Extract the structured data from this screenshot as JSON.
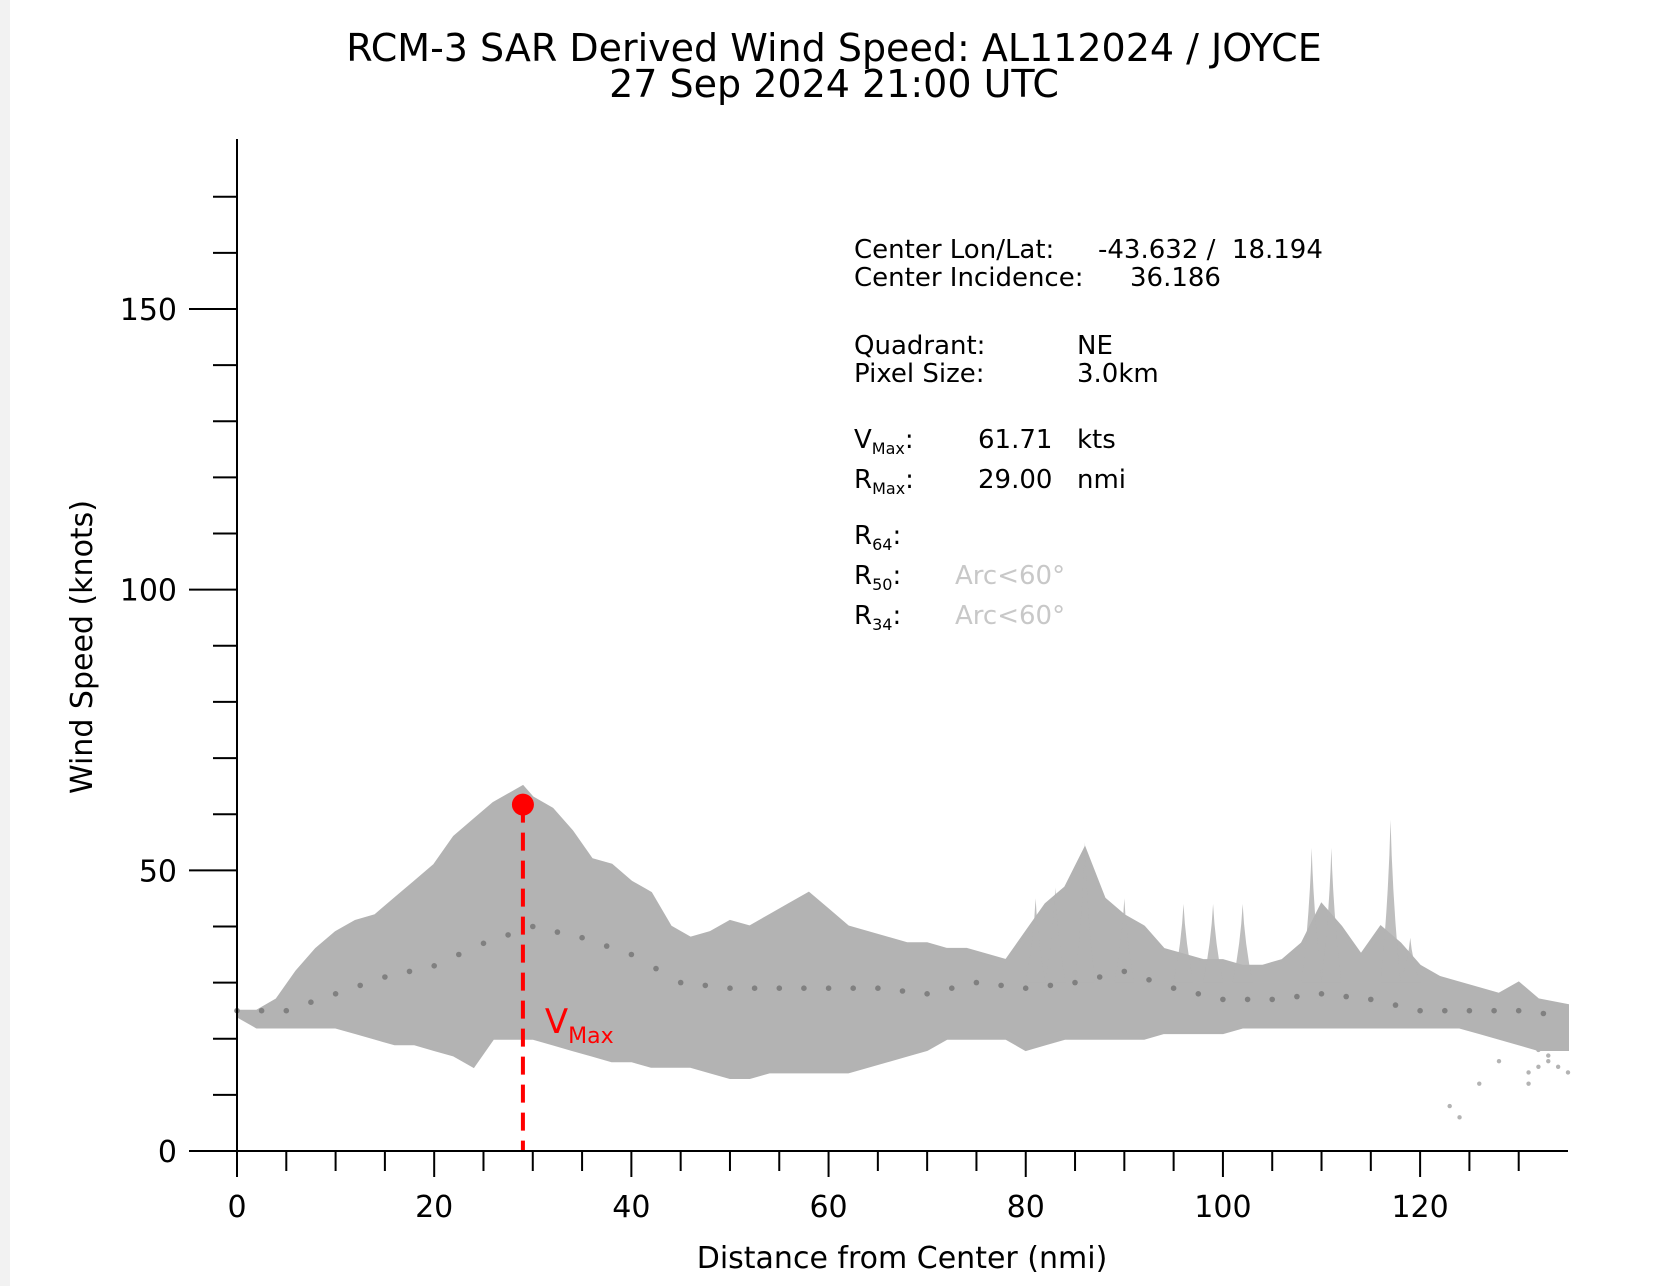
{
  "chart_data": {
    "type": "scatter",
    "title": "RCM-3 SAR Derived Wind Speed: AL112024 / JOYCE",
    "subtitle": "27 Sep 2024 21:00 UTC",
    "xlabel": "Distance from Center (nmi)",
    "ylabel": "Wind Speed (knots)",
    "xlim": [
      0,
      135
    ],
    "ylim": [
      0,
      180
    ],
    "x_ticks": [
      0,
      20,
      40,
      60,
      80,
      100,
      120
    ],
    "y_ticks": [
      0,
      50,
      100,
      150
    ],
    "grid": false,
    "colors": {
      "points": "#b3b3b3",
      "median": "#808080",
      "vmax": "#ff0000",
      "na_text": "#c8c8c8"
    },
    "envelope": {
      "x": [
        0,
        2,
        4,
        6,
        8,
        10,
        12,
        14,
        16,
        18,
        20,
        22,
        24,
        26,
        28,
        29,
        30,
        32,
        34,
        36,
        38,
        40,
        42,
        44,
        46,
        48,
        50,
        52,
        54,
        56,
        58,
        60,
        62,
        64,
        66,
        68,
        70,
        72,
        74,
        76,
        78,
        80,
        82,
        84,
        86,
        88,
        90,
        92,
        94,
        96,
        98,
        100,
        102,
        104,
        106,
        108,
        110,
        112,
        114,
        116,
        118,
        120,
        122,
        124,
        126,
        128,
        130,
        132,
        135
      ],
      "upper": [
        25,
        25,
        27,
        32,
        36,
        39,
        41,
        42,
        45,
        48,
        51,
        56,
        59,
        62,
        64,
        65,
        63,
        61,
        57,
        52,
        51,
        48,
        46,
        40,
        38,
        39,
        41,
        40,
        42,
        44,
        46,
        43,
        40,
        39,
        38,
        37,
        37,
        36,
        36,
        35,
        34,
        39,
        44,
        47,
        54,
        45,
        42,
        40,
        36,
        35,
        34,
        34,
        33,
        33,
        34,
        37,
        44,
        40,
        35,
        40,
        37,
        33,
        31,
        30,
        29,
        28,
        30,
        27,
        26
      ],
      "lower": [
        24,
        22,
        22,
        22,
        22,
        22,
        21,
        20,
        19,
        19,
        18,
        17,
        15,
        20,
        20,
        20,
        20,
        19,
        18,
        17,
        16,
        16,
        15,
        15,
        15,
        14,
        13,
        13,
        14,
        14,
        14,
        14,
        14,
        15,
        16,
        17,
        18,
        20,
        20,
        20,
        20,
        18,
        19,
        20,
        20,
        20,
        20,
        20,
        21,
        21,
        21,
        21,
        22,
        22,
        22,
        22,
        22,
        22,
        22,
        22,
        22,
        22,
        22,
        22,
        21,
        20,
        19,
        18,
        18
      ]
    },
    "median": {
      "x": [
        0,
        5,
        10,
        15,
        20,
        25,
        30,
        35,
        40,
        45,
        50,
        55,
        60,
        65,
        70,
        75,
        80,
        85,
        90,
        95,
        100,
        105,
        110,
        115,
        120,
        125,
        130,
        135
      ],
      "y": [
        25,
        25,
        28,
        31,
        33,
        37,
        40,
        38,
        35,
        30,
        29,
        29,
        29,
        29,
        28,
        30,
        29,
        30,
        32,
        29,
        27,
        27,
        28,
        27,
        25,
        25,
        25,
        24
      ]
    },
    "spikes": [
      {
        "x": 81,
        "y": 45
      },
      {
        "x": 83,
        "y": 47
      },
      {
        "x": 86,
        "y": 55
      },
      {
        "x": 90,
        "y": 45
      },
      {
        "x": 96,
        "y": 44
      },
      {
        "x": 99,
        "y": 44
      },
      {
        "x": 102,
        "y": 44
      },
      {
        "x": 109,
        "y": 54
      },
      {
        "x": 111,
        "y": 54
      },
      {
        "x": 117,
        "y": 59
      },
      {
        "x": 119,
        "y": 38
      }
    ],
    "tail_points": [
      {
        "x": 123,
        "y": 8
      },
      {
        "x": 124,
        "y": 6
      },
      {
        "x": 126,
        "y": 12
      },
      {
        "x": 128,
        "y": 16
      },
      {
        "x": 131,
        "y": 12
      },
      {
        "x": 132,
        "y": 18
      },
      {
        "x": 133,
        "y": 17
      },
      {
        "x": 134,
        "y": 20
      },
      {
        "x": 131,
        "y": 14
      },
      {
        "x": 132,
        "y": 15
      },
      {
        "x": 133,
        "y": 16
      },
      {
        "x": 134,
        "y": 15
      },
      {
        "x": 135,
        "y": 14
      }
    ],
    "vmax_point": {
      "x": 29.0,
      "y": 61.71
    },
    "vmax_label": "V",
    "vmax_label_sub": "Max"
  },
  "info": {
    "center_lonlat_label": "Center Lon/Lat:",
    "center_lonlat_value": "-43.632 /  18.194",
    "center_incidence_label": "Center Incidence:",
    "center_incidence_value": "36.186",
    "quadrant_label": "Quadrant:",
    "quadrant_value": "NE",
    "pixel_size_label": "Pixel Size:",
    "pixel_size_value": "3.0km",
    "vmax_label": "V",
    "vmax_sub": "Max",
    "vmax_value": "61.71",
    "vmax_unit": "kts",
    "rmax_label": "R",
    "rmax_sub": "Max",
    "rmax_value": "29.00",
    "rmax_unit": "nmi",
    "r64_label": "R",
    "r64_sub": "64",
    "r64_value": "",
    "r50_label": "R",
    "r50_sub": "50",
    "r50_value": "Arc<60°",
    "r34_label": "R",
    "r34_sub": "34",
    "r34_value": "Arc<60°"
  }
}
